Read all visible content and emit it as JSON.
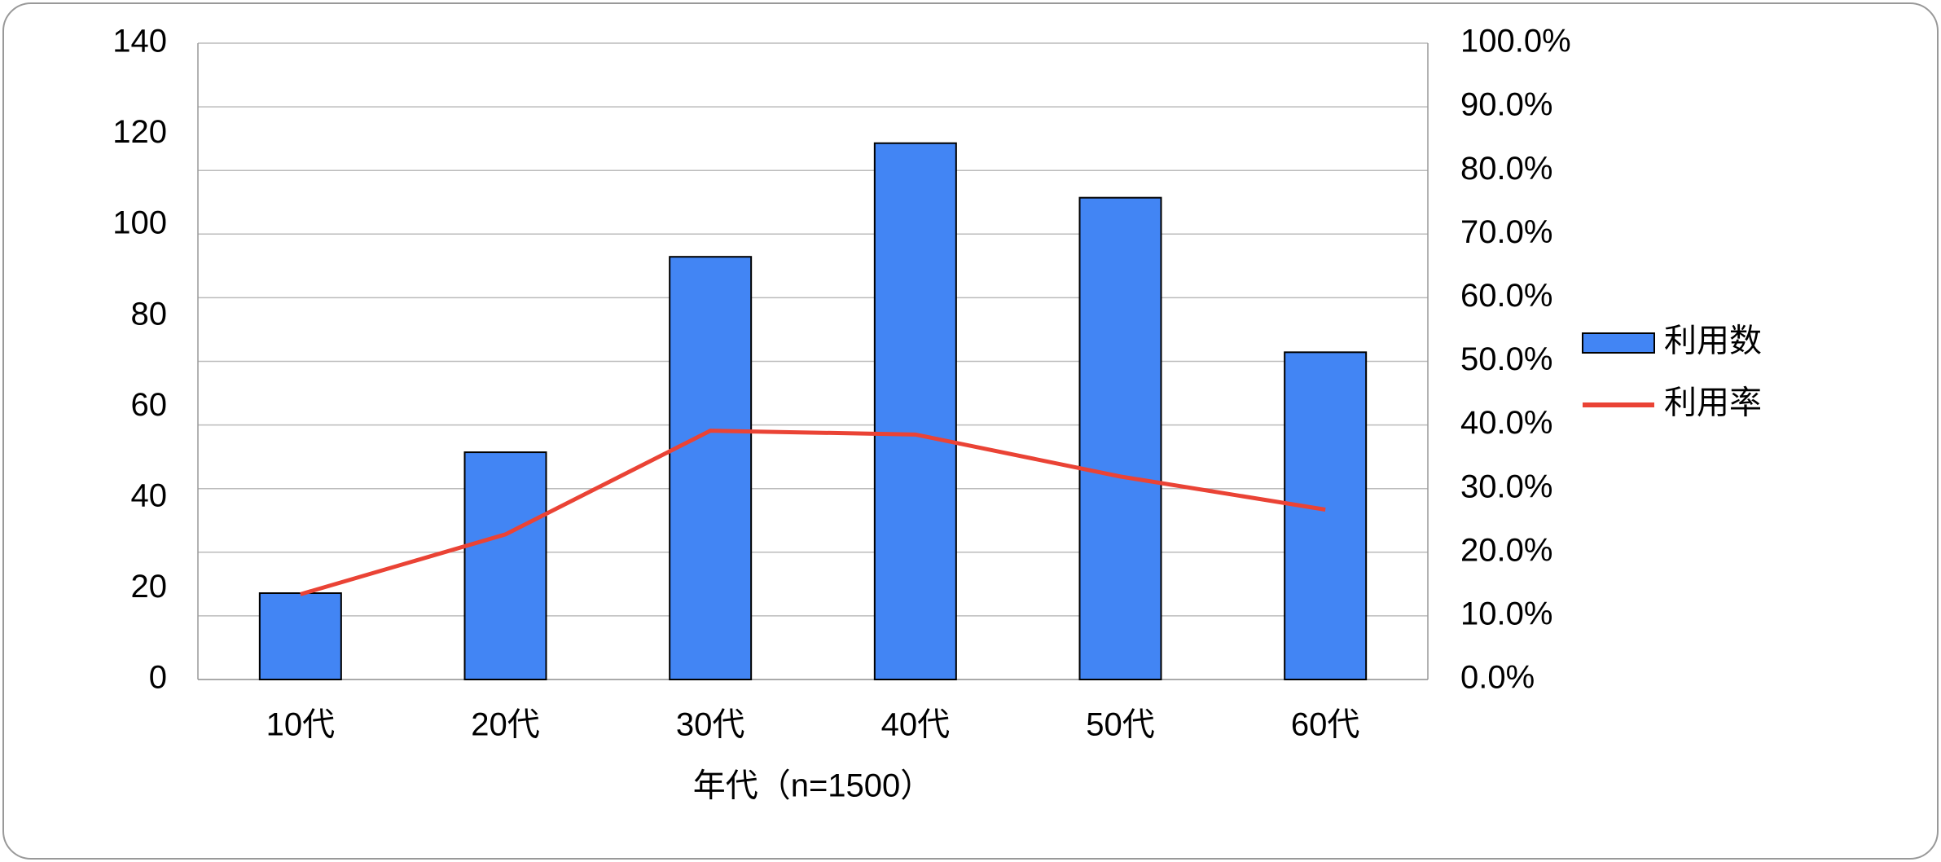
{
  "chart_data": {
    "type": "bar_line",
    "categories": [
      "10代",
      "20代",
      "30代",
      "40代",
      "50代",
      "60代"
    ],
    "x_label": "年代（n=1500）",
    "series": [
      {
        "name": "利用数",
        "type": "bar",
        "color": "#4285f4",
        "values": [
          19,
          50,
          93,
          118,
          106,
          72
        ]
      },
      {
        "name": "利用率",
        "type": "line",
        "axis": "y2",
        "color": "#ea4335",
        "values": [
          13.4,
          22.8,
          39.1,
          38.5,
          31.9,
          26.7
        ]
      }
    ],
    "ylim": [
      0,
      140
    ],
    "yticks": [
      0,
      20,
      40,
      60,
      80,
      100,
      120,
      140
    ],
    "y2lim": [
      0,
      100
    ],
    "y2ticks": [
      {
        "value": 0,
        "label": "0.0%"
      },
      {
        "value": 10,
        "label": "10.0%"
      },
      {
        "value": 20,
        "label": "20.0%"
      },
      {
        "value": 30,
        "label": "30.0%"
      },
      {
        "value": 40,
        "label": "40.0%"
      },
      {
        "value": 50,
        "label": "50.0%"
      },
      {
        "value": 60,
        "label": "60.0%"
      },
      {
        "value": 70,
        "label": "70.0%"
      },
      {
        "value": 80,
        "label": "80.0%"
      },
      {
        "value": 90,
        "label": "90.0%"
      },
      {
        "value": 100,
        "label": "100.0%"
      }
    ],
    "grid": true
  }
}
